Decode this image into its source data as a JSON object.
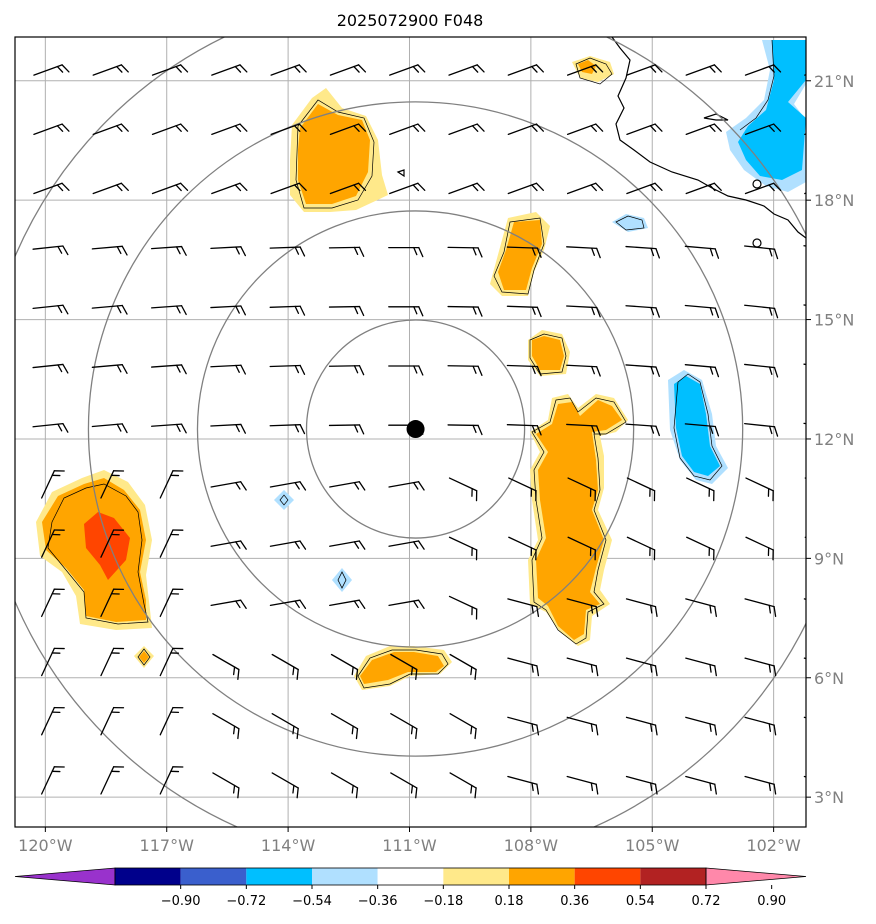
{
  "title": "2025072900 F048",
  "lon_ticks": [
    {
      "value": -120,
      "label": "120°W"
    },
    {
      "value": -117,
      "label": "117°W"
    },
    {
      "value": -114,
      "label": "114°W"
    },
    {
      "value": -111,
      "label": "111°W"
    },
    {
      "value": -108,
      "label": "108°W"
    },
    {
      "value": -105,
      "label": "105°W"
    },
    {
      "value": -102,
      "label": "102°W"
    }
  ],
  "lat_ticks": [
    {
      "value": 21,
      "label": "21°N"
    },
    {
      "value": 18,
      "label": "18°N"
    },
    {
      "value": 15,
      "label": "15°N"
    },
    {
      "value": 12,
      "label": "12°N"
    },
    {
      "value": 9,
      "label": "9°N"
    },
    {
      "value": 6,
      "label": "6°N"
    },
    {
      "value": 3,
      "label": "3°N"
    }
  ],
  "extent": {
    "lon_min": -120.75,
    "lon_max": -101.2,
    "lat_min": 2.25,
    "lat_max": 22.1
  },
  "center_marker": {
    "lon": -110.85,
    "lat": 12.25,
    "color": "#000000"
  },
  "range_rings_deg": [
    2.75,
    5.5,
    8.25,
    11.0
  ],
  "colorbar": {
    "ticks": [
      "−0.90",
      "−0.72",
      "−0.54",
      "−0.36",
      "−0.18",
      "0.18",
      "0.36",
      "0.54",
      "0.72",
      "0.90"
    ],
    "colors": [
      "#9932cc",
      "#00008b",
      "#3a5fcd",
      "#00bfff",
      "#b0e0ff",
      "#ffffff",
      "#ffe98a",
      "#ffa500",
      "#ff4500",
      "#b22222",
      "#ff88aa"
    ]
  },
  "colors": {
    "pos_light": "#ffe98a",
    "pos_mid": "#ffa500",
    "pos_high": "#ff4500",
    "neg_light": "#b0e0ff",
    "neg_mid": "#00bfff",
    "grid": "#b0b0b0",
    "ring": "#808080"
  }
}
